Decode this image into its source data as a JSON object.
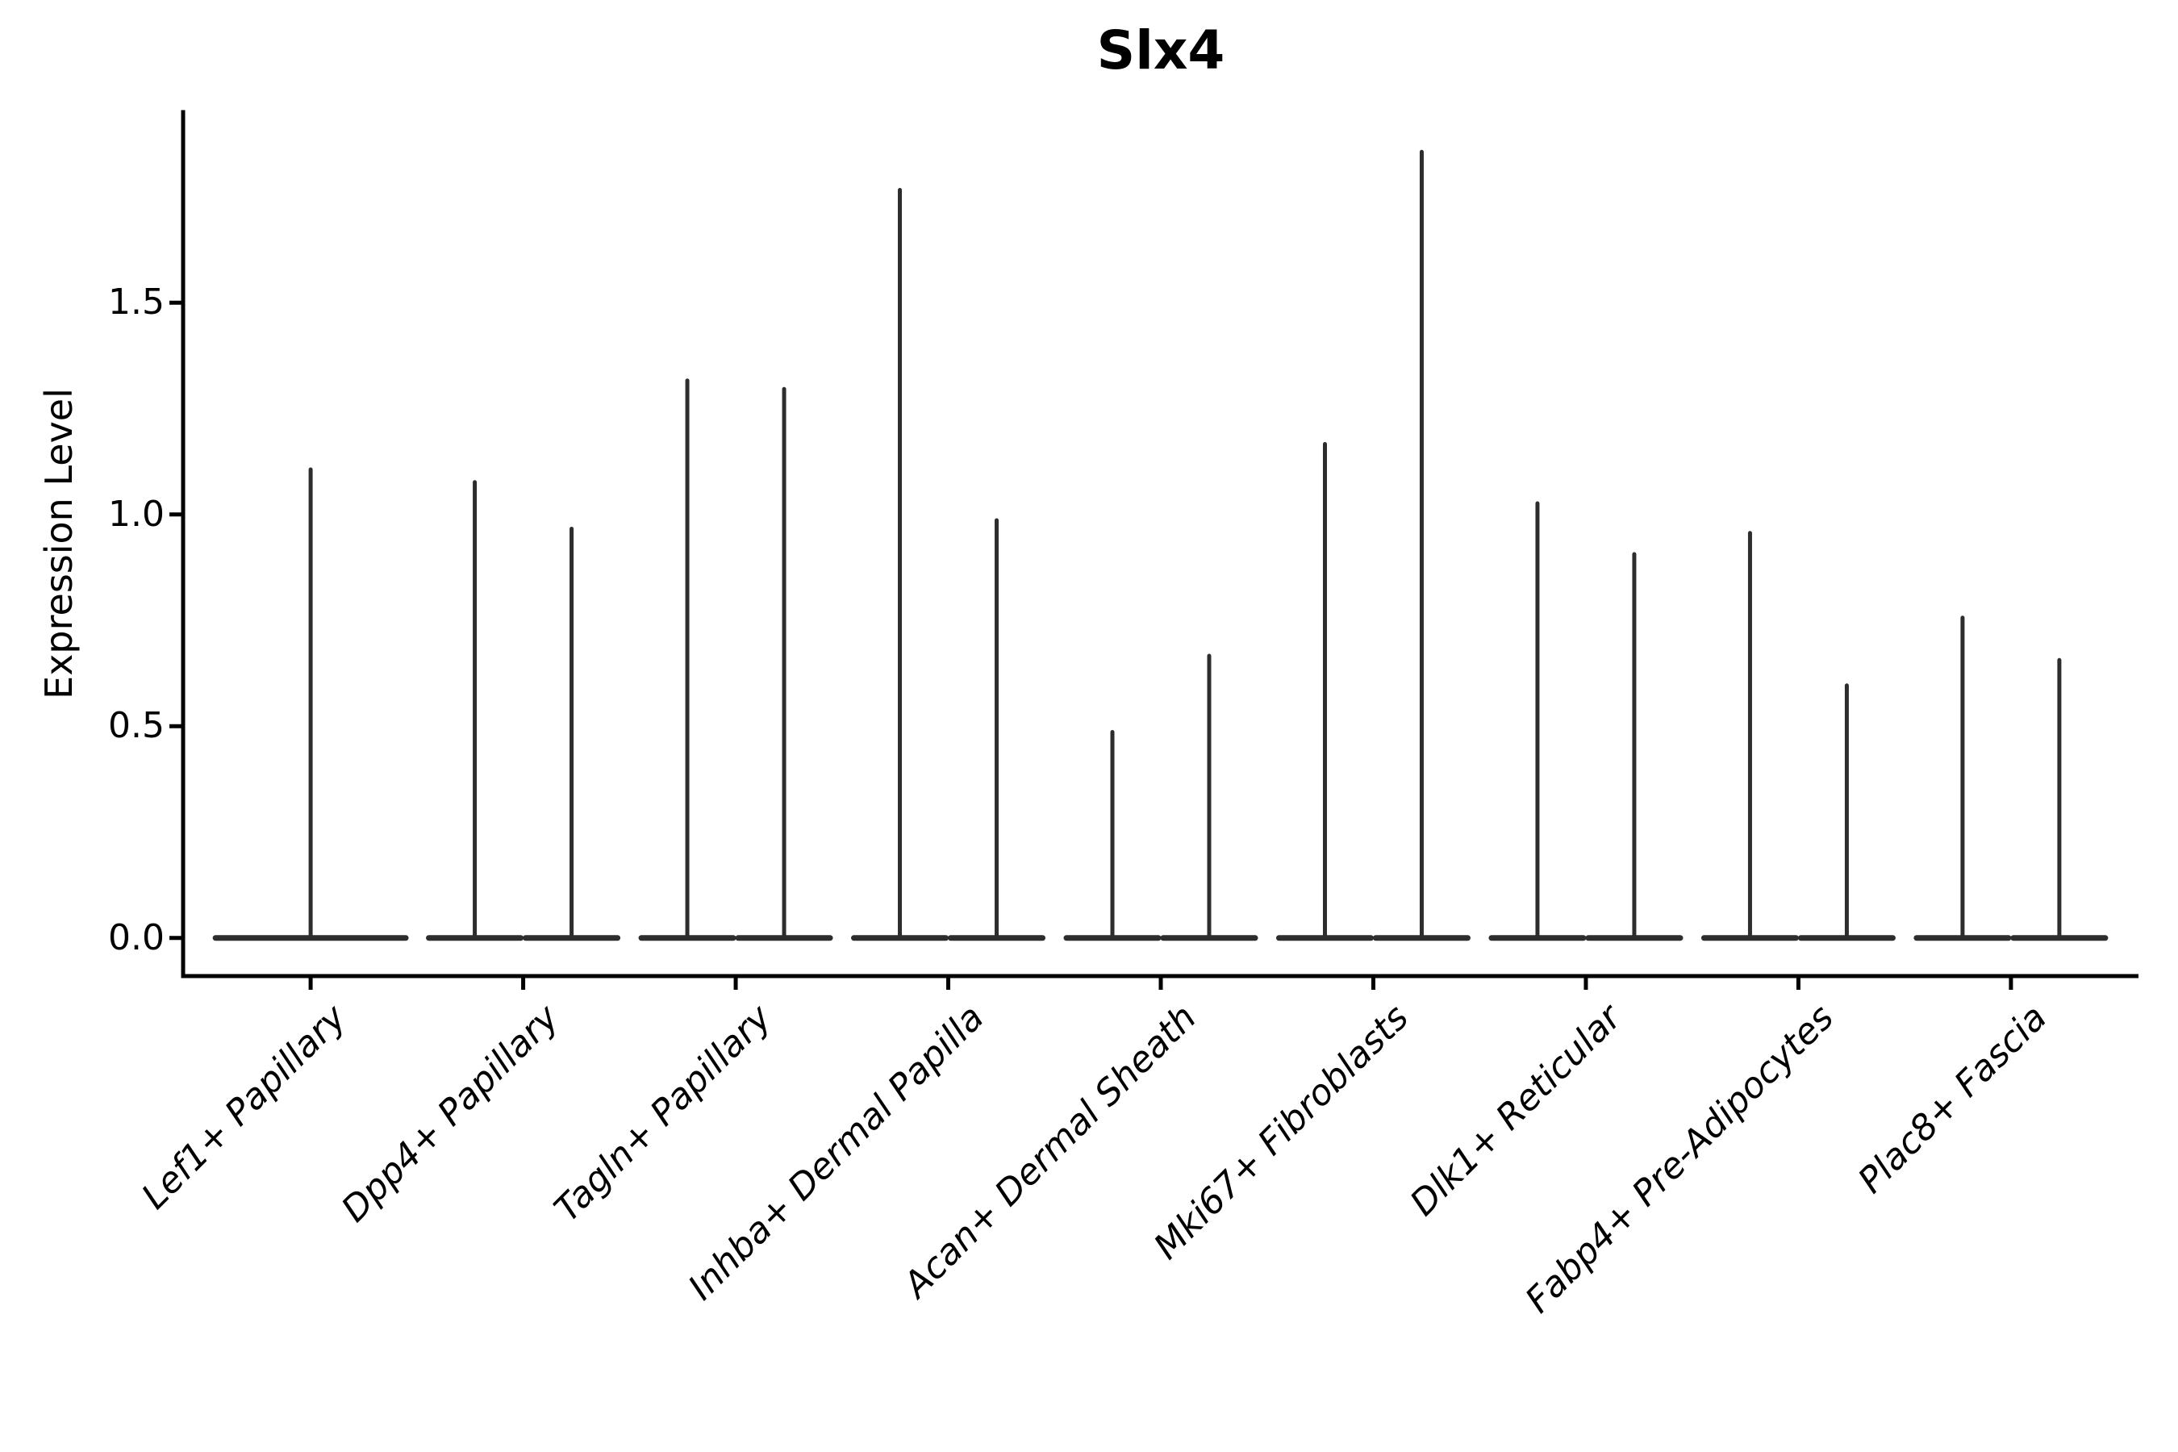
{
  "figure": {
    "background": "#ffffff"
  },
  "chart_data": {
    "type": "violin",
    "title": "Slx4",
    "ylabel": "Expression Level",
    "xlabel": "",
    "categories": [
      "Lef1+ Papillary",
      "Dpp4+ Papillary",
      "Tagln+ Papillary",
      "Inhba+ Dermal Papilla",
      "Acan+ Dermal Sheath",
      "Mki67+ Fibroblasts",
      "Dlk1+ Reticular",
      "Fabp4+ Pre-Adipocytes",
      "Plac8+ Fascia"
    ],
    "values": [
      [
        1.11
      ],
      [
        1.08,
        0.97
      ],
      [
        1.32,
        1.3
      ],
      [
        1.77,
        0.99
      ],
      [
        0.49,
        0.67
      ],
      [
        1.17,
        1.86
      ],
      [
        1.03,
        0.91
      ],
      [
        0.96,
        0.6
      ],
      [
        0.76,
        0.66
      ]
    ],
    "note": "Each category shows 1-2 needle-shaped violins (wide base at 0, thin spike); values[] are the spike-top (max) expression levels per violin.",
    "y_ticks": [
      0.0,
      0.5,
      1.0,
      1.5
    ],
    "y_tick_labels": [
      "0.0",
      "0.5",
      "1.0",
      "1.5"
    ],
    "ylim": [
      -0.09,
      1.95
    ],
    "xlim_slots": [
      -0.6,
      8.6
    ],
    "grid": false,
    "legend": "none",
    "violin_color": "#2d2d2d",
    "axis_color": "#000000",
    "text_color": "#000000"
  }
}
